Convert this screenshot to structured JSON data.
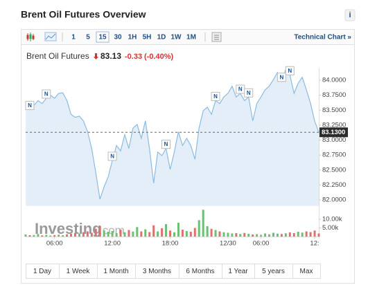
{
  "header": {
    "title": "Brent Oil Futures Overview",
    "info": "i"
  },
  "toolbar": {
    "intervals": [
      "1",
      "5",
      "15",
      "30",
      "1H",
      "5H",
      "1D",
      "1W",
      "1M"
    ],
    "selected_index": 2,
    "technical_chart": "Technical Chart »"
  },
  "chart_data": {
    "type": "line",
    "instrument": "Brent Oil Futures",
    "last": 83.13,
    "change": -0.33,
    "change_pct": {
      "value": -0.4,
      "label": "(-0.40%)"
    },
    "last_axis_label": {
      "value": 83.13,
      "label": "83.1300"
    },
    "color": "#8cbbe0",
    "fill": "#e3eef8",
    "change_color": "#d9302c",
    "values": [
      83.61,
      83.51,
      83.58,
      83.66,
      83.61,
      83.7,
      83.75,
      83.7,
      83.78,
      83.79,
      83.66,
      83.43,
      83.38,
      83.4,
      83.32,
      83.14,
      82.86,
      82.45,
      82.01,
      82.22,
      82.39,
      82.66,
      82.91,
      82.82,
      83.09,
      82.86,
      83.2,
      83.26,
      83.03,
      83.32,
      82.86,
      82.28,
      82.8,
      82.74,
      82.86,
      82.51,
      82.8,
      83.14,
      82.91,
      83.03,
      82.91,
      82.68,
      83.2,
      83.49,
      83.55,
      83.43,
      83.66,
      83.61,
      83.72,
      83.78,
      83.9,
      83.72,
      83.78,
      83.66,
      83.72,
      83.32,
      83.61,
      83.72,
      83.84,
      83.9,
      84.01,
      84.13,
      83.98,
      84.18,
      84.09,
      83.78,
      83.95,
      84.05,
      83.84,
      83.61,
      83.32,
      83.13
    ],
    "xlim": [
      0,
      71
    ],
    "xticks": [
      {
        "value": 7,
        "label": "06:00"
      },
      {
        "value": 21,
        "label": "12:00"
      },
      {
        "value": 35,
        "label": "18:00"
      },
      {
        "value": 49,
        "label": "12/30"
      },
      {
        "value": 57,
        "label": "06:00"
      },
      {
        "value": 70,
        "label": "12:"
      }
    ],
    "ylim": [
      81.9,
      84.2
    ],
    "yticks": [
      {
        "value": 82,
        "label": "82.0000"
      },
      {
        "value": 82.25,
        "label": "82.2500"
      },
      {
        "value": 82.5,
        "label": "82.5000"
      },
      {
        "value": 82.75,
        "label": "82.7500"
      },
      {
        "value": 83,
        "label": "83.0000"
      },
      {
        "value": 83.25,
        "label": "83.2500"
      },
      {
        "value": 83.5,
        "label": "83.5000"
      },
      {
        "value": 83.75,
        "label": "83.7500"
      },
      {
        "value": 84,
        "label": "84.0000"
      }
    ],
    "grid": false,
    "news": [
      {
        "x": 1,
        "label": "N"
      },
      {
        "x": 5,
        "label": "N"
      },
      {
        "x": 21,
        "label": "N"
      },
      {
        "x": 34,
        "label": "N"
      },
      {
        "x": 46,
        "label": "N"
      },
      {
        "x": 52,
        "label": "N"
      },
      {
        "x": 54,
        "label": "N"
      },
      {
        "x": 62,
        "label": "N"
      },
      {
        "x": 64,
        "label": "N"
      }
    ],
    "watermark": [
      "Investing",
      ".com"
    ],
    "volume": {
      "up_color": "#6cbf73",
      "down_color": "#e07070",
      "values": [
        1200,
        800,
        900,
        1500,
        700,
        1000,
        600,
        900,
        1100,
        800,
        1300,
        1600,
        2100,
        1800,
        2500,
        3000,
        2200,
        4500,
        6000,
        3500,
        2800,
        3200,
        2000,
        4000,
        2500,
        3800,
        2900,
        5500,
        3000,
        4200,
        2600,
        6500,
        3000,
        4800,
        7200,
        3500,
        2500,
        8000,
        4000,
        3200,
        2800,
        5000,
        9500,
        15500,
        6000,
        4500,
        3800,
        3000,
        2500,
        2200,
        1800,
        2000,
        1500,
        2100,
        1600,
        1200,
        1400,
        1000,
        1800,
        1300,
        2200,
        1700,
        1500,
        1900,
        2400,
        2000,
        2800,
        2300,
        3000,
        2600,
        3500,
        1800
      ],
      "ylim": [
        0,
        16000
      ],
      "yticks": [
        {
          "value": 10000,
          "label": "10.00k"
        },
        {
          "value": 5000,
          "label": "5.00k"
        }
      ]
    }
  },
  "range_buttons": [
    "1 Day",
    "1 Week",
    "1 Month",
    "3 Months",
    "6 Months",
    "1 Year",
    "5 years",
    "Max"
  ]
}
